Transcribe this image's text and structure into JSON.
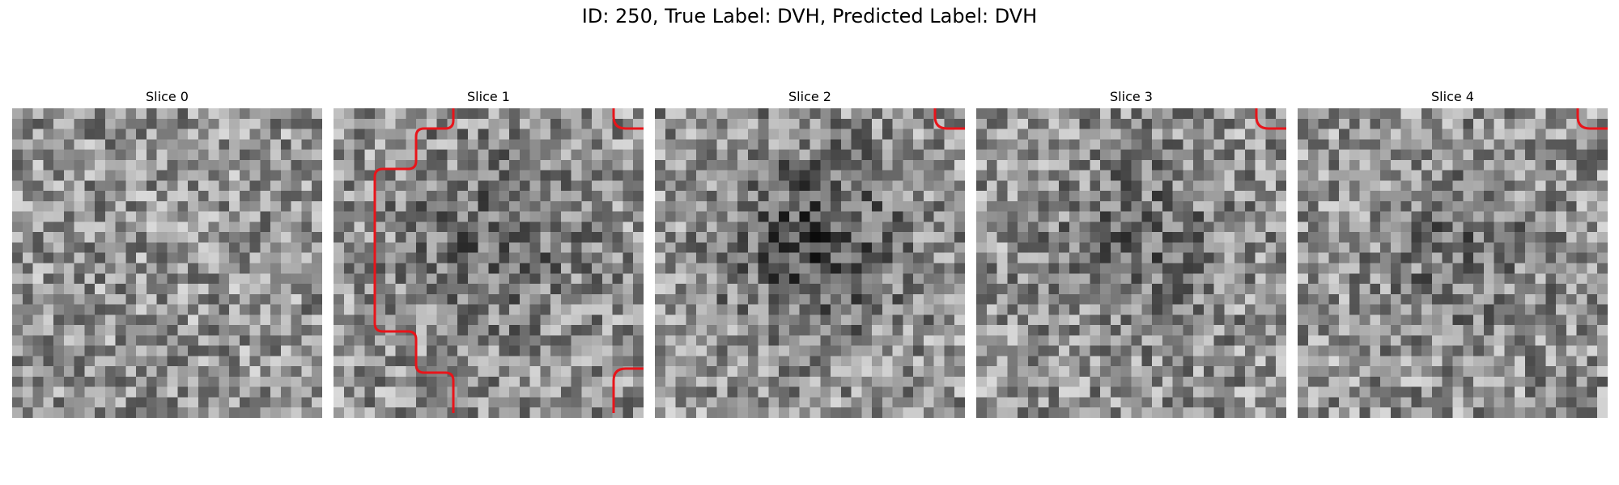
{
  "figure": {
    "title": "ID: 250, True Label: DVH, Predicted Label: DVH"
  },
  "panels": [
    {
      "title": "Slice 0"
    },
    {
      "title": "Slice 1"
    },
    {
      "title": "Slice 2"
    },
    {
      "title": "Slice 3"
    },
    {
      "title": "Slice 4"
    }
  ],
  "contour_color": "#e8141a",
  "colormap": "gray",
  "grid_size": 30
}
